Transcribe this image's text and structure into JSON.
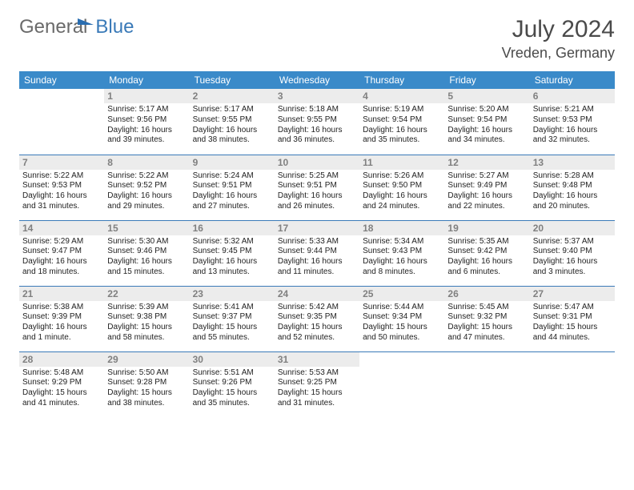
{
  "logo": {
    "part1": "General",
    "part2": "Blue"
  },
  "title": "July 2024",
  "location": "Vreden, Germany",
  "colors": {
    "header_bg": "#3a8ac9",
    "header_text": "#ffffff",
    "row_border": "#3a7ab8",
    "daynum_bg": "#ececec",
    "daynum_color": "#808080",
    "text_color": "#222222",
    "logo_gray": "#6a6a6a",
    "logo_blue": "#3a7ab8"
  },
  "weekdays": [
    "Sunday",
    "Monday",
    "Tuesday",
    "Wednesday",
    "Thursday",
    "Friday",
    "Saturday"
  ],
  "weeks": [
    [
      {
        "n": "",
        "sr": "",
        "ss": "",
        "dl": ""
      },
      {
        "n": "1",
        "sr": "Sunrise: 5:17 AM",
        "ss": "Sunset: 9:56 PM",
        "dl": "Daylight: 16 hours and 39 minutes."
      },
      {
        "n": "2",
        "sr": "Sunrise: 5:17 AM",
        "ss": "Sunset: 9:55 PM",
        "dl": "Daylight: 16 hours and 38 minutes."
      },
      {
        "n": "3",
        "sr": "Sunrise: 5:18 AM",
        "ss": "Sunset: 9:55 PM",
        "dl": "Daylight: 16 hours and 36 minutes."
      },
      {
        "n": "4",
        "sr": "Sunrise: 5:19 AM",
        "ss": "Sunset: 9:54 PM",
        "dl": "Daylight: 16 hours and 35 minutes."
      },
      {
        "n": "5",
        "sr": "Sunrise: 5:20 AM",
        "ss": "Sunset: 9:54 PM",
        "dl": "Daylight: 16 hours and 34 minutes."
      },
      {
        "n": "6",
        "sr": "Sunrise: 5:21 AM",
        "ss": "Sunset: 9:53 PM",
        "dl": "Daylight: 16 hours and 32 minutes."
      }
    ],
    [
      {
        "n": "7",
        "sr": "Sunrise: 5:22 AM",
        "ss": "Sunset: 9:53 PM",
        "dl": "Daylight: 16 hours and 31 minutes."
      },
      {
        "n": "8",
        "sr": "Sunrise: 5:22 AM",
        "ss": "Sunset: 9:52 PM",
        "dl": "Daylight: 16 hours and 29 minutes."
      },
      {
        "n": "9",
        "sr": "Sunrise: 5:24 AM",
        "ss": "Sunset: 9:51 PM",
        "dl": "Daylight: 16 hours and 27 minutes."
      },
      {
        "n": "10",
        "sr": "Sunrise: 5:25 AM",
        "ss": "Sunset: 9:51 PM",
        "dl": "Daylight: 16 hours and 26 minutes."
      },
      {
        "n": "11",
        "sr": "Sunrise: 5:26 AM",
        "ss": "Sunset: 9:50 PM",
        "dl": "Daylight: 16 hours and 24 minutes."
      },
      {
        "n": "12",
        "sr": "Sunrise: 5:27 AM",
        "ss": "Sunset: 9:49 PM",
        "dl": "Daylight: 16 hours and 22 minutes."
      },
      {
        "n": "13",
        "sr": "Sunrise: 5:28 AM",
        "ss": "Sunset: 9:48 PM",
        "dl": "Daylight: 16 hours and 20 minutes."
      }
    ],
    [
      {
        "n": "14",
        "sr": "Sunrise: 5:29 AM",
        "ss": "Sunset: 9:47 PM",
        "dl": "Daylight: 16 hours and 18 minutes."
      },
      {
        "n": "15",
        "sr": "Sunrise: 5:30 AM",
        "ss": "Sunset: 9:46 PM",
        "dl": "Daylight: 16 hours and 15 minutes."
      },
      {
        "n": "16",
        "sr": "Sunrise: 5:32 AM",
        "ss": "Sunset: 9:45 PM",
        "dl": "Daylight: 16 hours and 13 minutes."
      },
      {
        "n": "17",
        "sr": "Sunrise: 5:33 AM",
        "ss": "Sunset: 9:44 PM",
        "dl": "Daylight: 16 hours and 11 minutes."
      },
      {
        "n": "18",
        "sr": "Sunrise: 5:34 AM",
        "ss": "Sunset: 9:43 PM",
        "dl": "Daylight: 16 hours and 8 minutes."
      },
      {
        "n": "19",
        "sr": "Sunrise: 5:35 AM",
        "ss": "Sunset: 9:42 PM",
        "dl": "Daylight: 16 hours and 6 minutes."
      },
      {
        "n": "20",
        "sr": "Sunrise: 5:37 AM",
        "ss": "Sunset: 9:40 PM",
        "dl": "Daylight: 16 hours and 3 minutes."
      }
    ],
    [
      {
        "n": "21",
        "sr": "Sunrise: 5:38 AM",
        "ss": "Sunset: 9:39 PM",
        "dl": "Daylight: 16 hours and 1 minute."
      },
      {
        "n": "22",
        "sr": "Sunrise: 5:39 AM",
        "ss": "Sunset: 9:38 PM",
        "dl": "Daylight: 15 hours and 58 minutes."
      },
      {
        "n": "23",
        "sr": "Sunrise: 5:41 AM",
        "ss": "Sunset: 9:37 PM",
        "dl": "Daylight: 15 hours and 55 minutes."
      },
      {
        "n": "24",
        "sr": "Sunrise: 5:42 AM",
        "ss": "Sunset: 9:35 PM",
        "dl": "Daylight: 15 hours and 52 minutes."
      },
      {
        "n": "25",
        "sr": "Sunrise: 5:44 AM",
        "ss": "Sunset: 9:34 PM",
        "dl": "Daylight: 15 hours and 50 minutes."
      },
      {
        "n": "26",
        "sr": "Sunrise: 5:45 AM",
        "ss": "Sunset: 9:32 PM",
        "dl": "Daylight: 15 hours and 47 minutes."
      },
      {
        "n": "27",
        "sr": "Sunrise: 5:47 AM",
        "ss": "Sunset: 9:31 PM",
        "dl": "Daylight: 15 hours and 44 minutes."
      }
    ],
    [
      {
        "n": "28",
        "sr": "Sunrise: 5:48 AM",
        "ss": "Sunset: 9:29 PM",
        "dl": "Daylight: 15 hours and 41 minutes."
      },
      {
        "n": "29",
        "sr": "Sunrise: 5:50 AM",
        "ss": "Sunset: 9:28 PM",
        "dl": "Daylight: 15 hours and 38 minutes."
      },
      {
        "n": "30",
        "sr": "Sunrise: 5:51 AM",
        "ss": "Sunset: 9:26 PM",
        "dl": "Daylight: 15 hours and 35 minutes."
      },
      {
        "n": "31",
        "sr": "Sunrise: 5:53 AM",
        "ss": "Sunset: 9:25 PM",
        "dl": "Daylight: 15 hours and 31 minutes."
      },
      {
        "n": "",
        "sr": "",
        "ss": "",
        "dl": ""
      },
      {
        "n": "",
        "sr": "",
        "ss": "",
        "dl": ""
      },
      {
        "n": "",
        "sr": "",
        "ss": "",
        "dl": ""
      }
    ]
  ]
}
